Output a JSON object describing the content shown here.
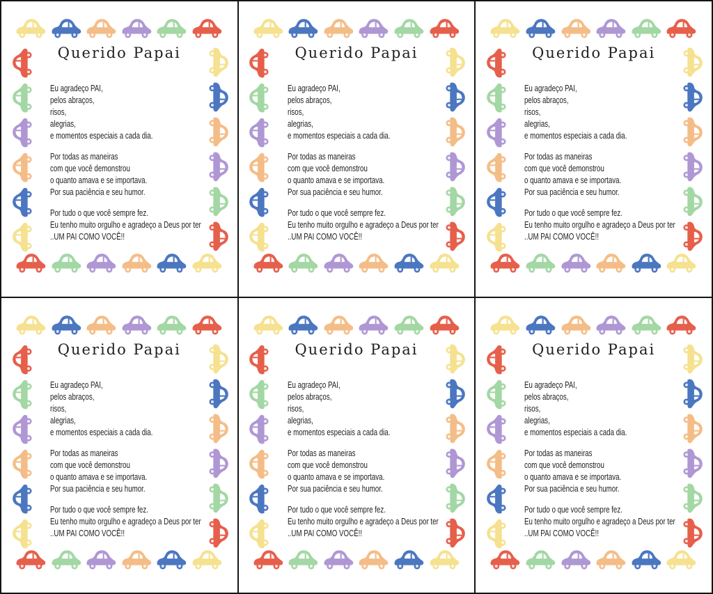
{
  "sheet": {
    "rows": 2,
    "cols": 3,
    "card_count": 6,
    "grid_line_color": "#141414",
    "card_background": "#ffffff"
  },
  "palette": {
    "yellow": "#F5E18F",
    "blue": "#4B76C0",
    "orange": "#F4BD87",
    "purple": "#AF97D4",
    "green": "#A3D7A4",
    "red": "#E65F4B"
  },
  "card": {
    "title": "Querido Papai",
    "title_color": "#1f1f1f",
    "text_color": "#1e1e1e",
    "poem_paragraphs": [
      [
        "Eu agradeço PAI,",
        "pelos abraços,",
        "risos,",
        "alegrias,",
        "e momentos especiais a cada dia."
      ],
      [
        "Por todas as maneiras",
        "com que você demonstrou",
        "o quanto amava e se importava.",
        "Por sua paciência e seu humor."
      ],
      [
        "Por tudo o que você sempre fez.",
        "Eu tenho muito orgulho e agradeço a Deus por ter",
        "..UM PAI COMO VOCÊ!!"
      ]
    ],
    "border_cars": {
      "top": [
        "yellow",
        "blue",
        "orange",
        "purple",
        "green",
        "red"
      ],
      "left": [
        "red",
        "green",
        "purple",
        "orange",
        "blue",
        "yellow"
      ],
      "right": [
        "yellow",
        "blue",
        "orange",
        "purple",
        "green",
        "red"
      ],
      "bottom": [
        "red",
        "green",
        "purple",
        "orange",
        "blue",
        "yellow"
      ]
    }
  }
}
